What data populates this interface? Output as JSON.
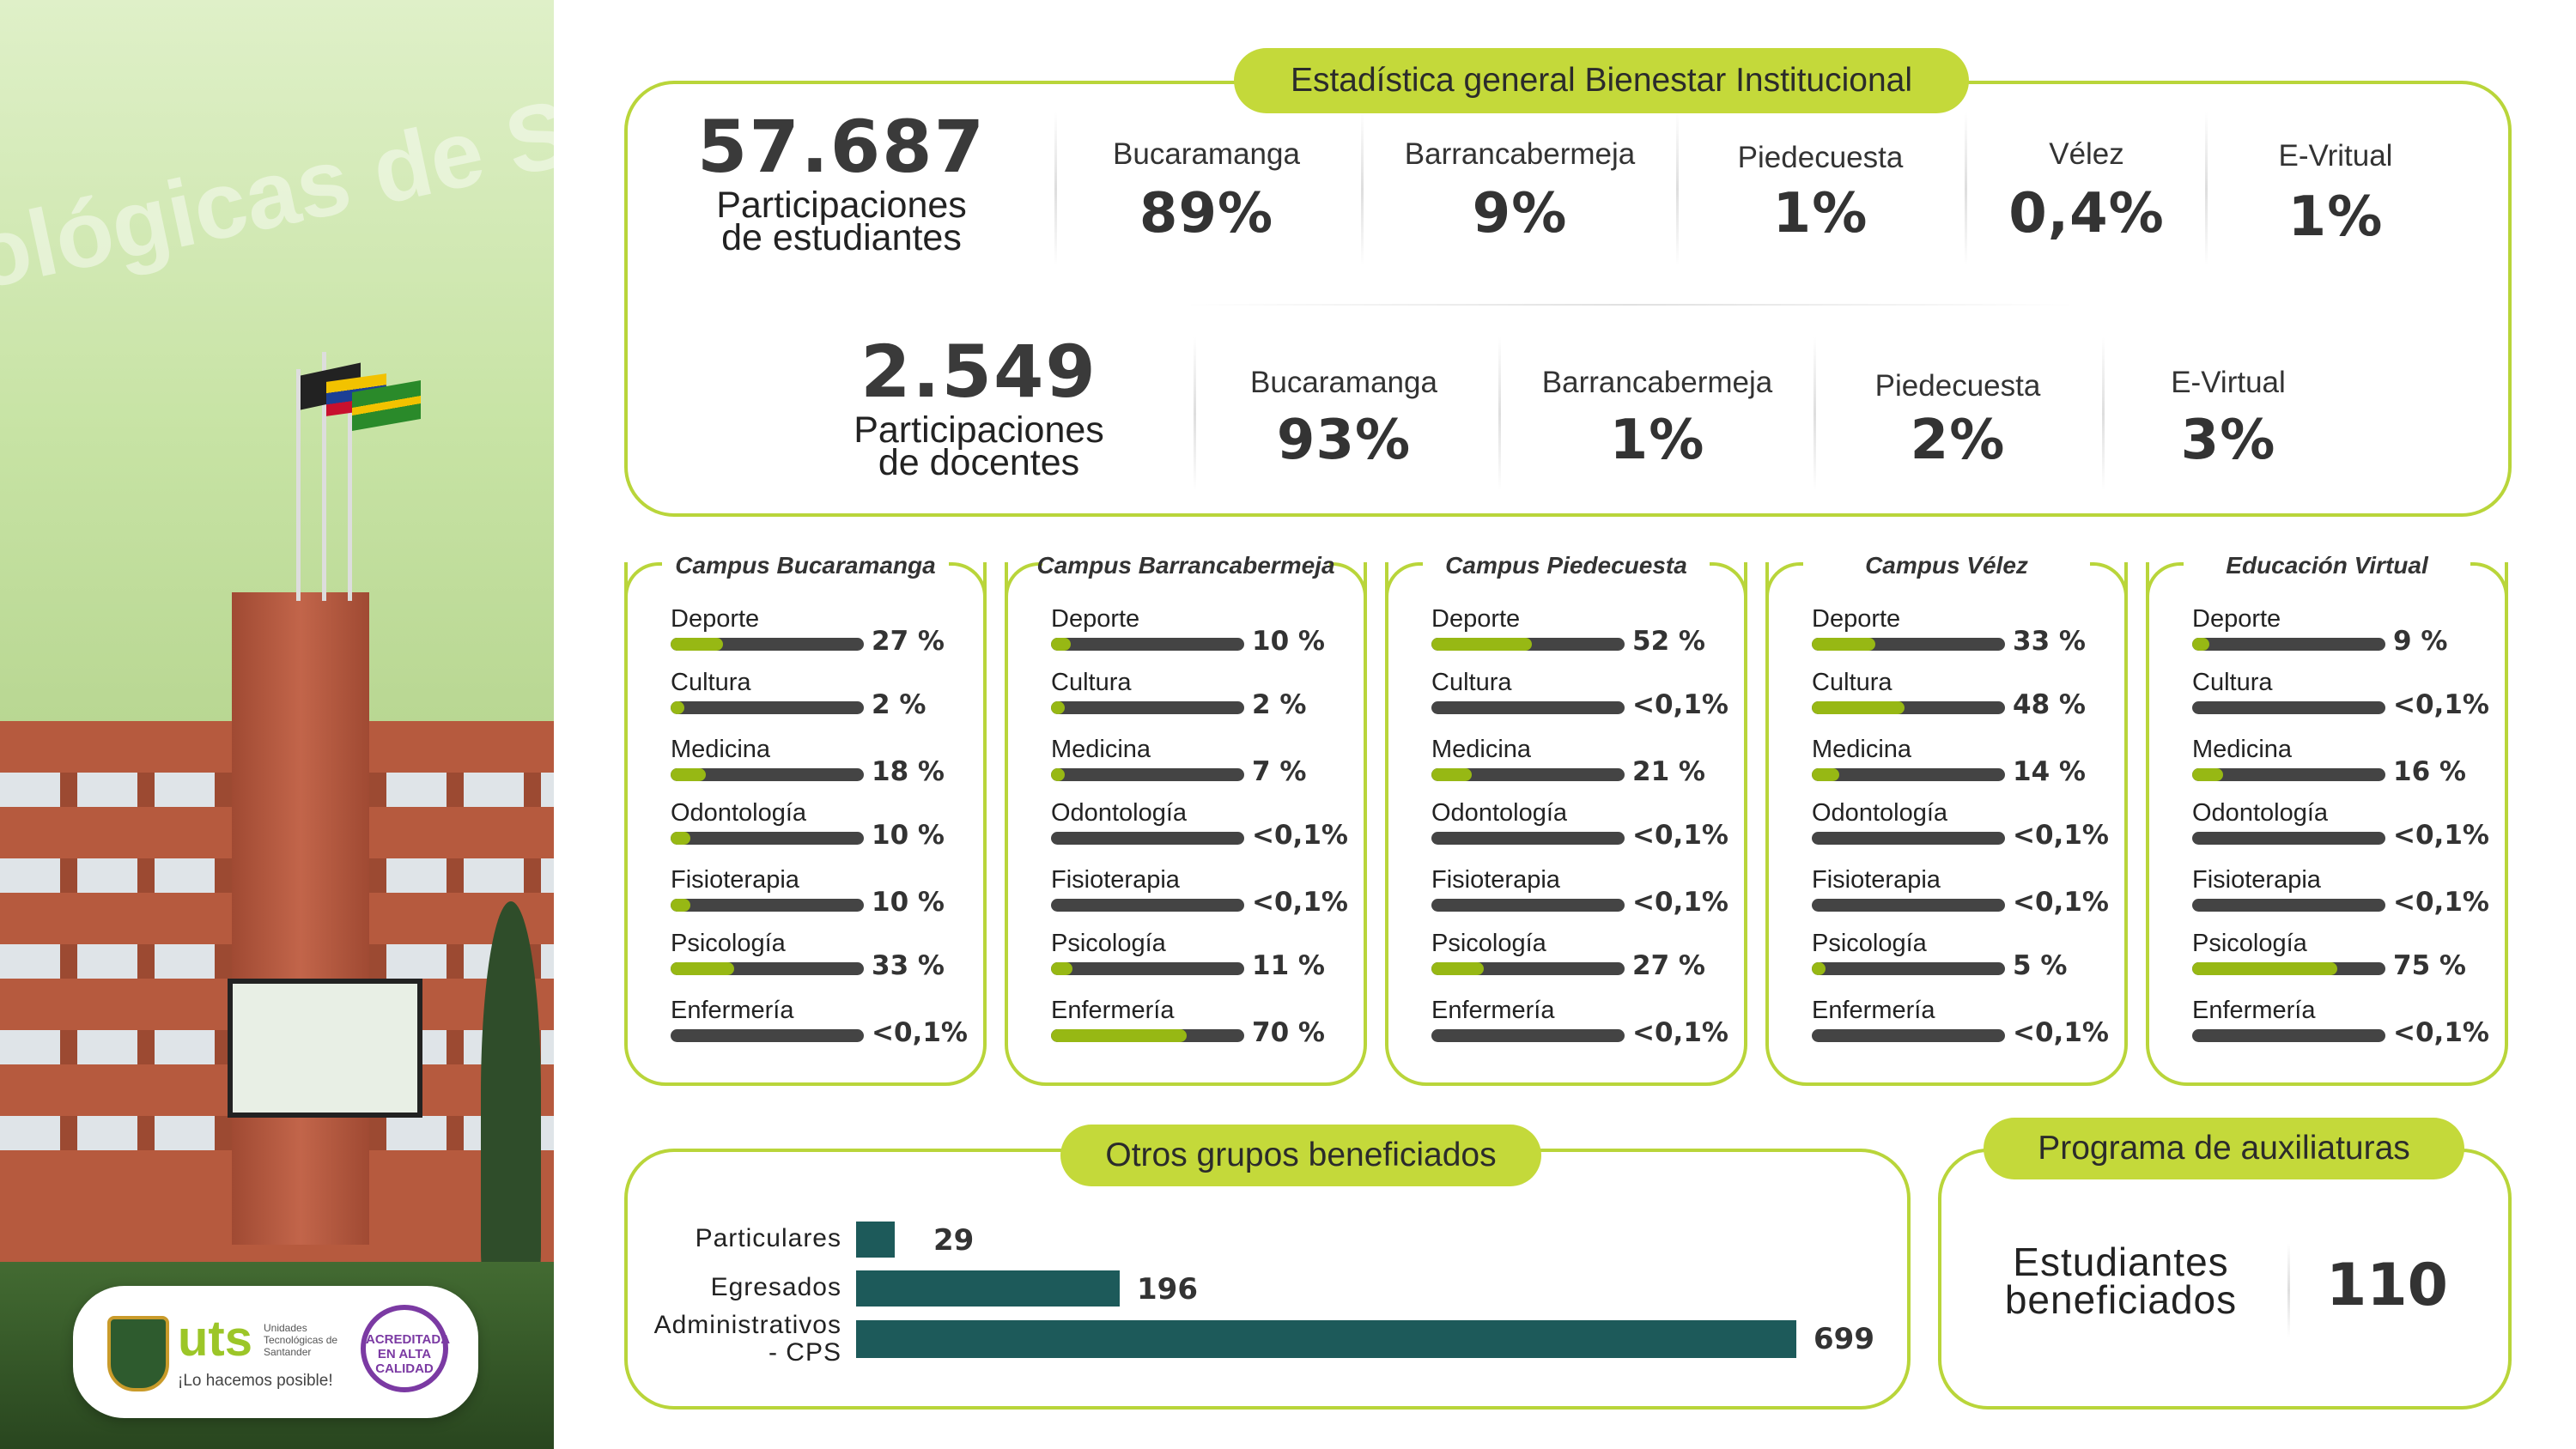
{
  "title": "Estadística general Bienestar Institucional",
  "students": {
    "total": "57.687",
    "label_line1": "Participaciones",
    "label_line2": "de estudiantes",
    "sites": [
      {
        "name": "Bucaramanga",
        "pct": "89%"
      },
      {
        "name": "Barrancabermeja",
        "pct": "9%"
      },
      {
        "name": "Piedecuesta",
        "pct": "1%"
      },
      {
        "name": "Vélez",
        "pct": "0,4%"
      },
      {
        "name": "E-Vritual",
        "pct": "1%"
      }
    ]
  },
  "teachers": {
    "total": "2.549",
    "label_line1": "Participaciones",
    "label_line2": "de docentes",
    "sites": [
      {
        "name": "Bucaramanga",
        "pct": "93%"
      },
      {
        "name": "Barrancabermeja",
        "pct": "1%"
      },
      {
        "name": "Piedecuesta",
        "pct": "2%"
      },
      {
        "name": "E-Virtual",
        "pct": "3%"
      }
    ]
  },
  "campuses": [
    {
      "title": "Campus Bucaramanga",
      "rows": [
        {
          "label": "Deporte",
          "value": 27,
          "text": "27 %"
        },
        {
          "label": "Cultura",
          "value": 2,
          "text": "2 %"
        },
        {
          "label": "Medicina",
          "value": 18,
          "text": "18 %"
        },
        {
          "label": "Odontología",
          "value": 10,
          "text": "10 %"
        },
        {
          "label": "Fisioterapia",
          "value": 10,
          "text": "10 %"
        },
        {
          "label": "Psicología",
          "value": 33,
          "text": "33 %"
        },
        {
          "label": "Enfermería",
          "value": 0.1,
          "text": "<0,1%"
        }
      ]
    },
    {
      "title": "Campus Barrancabermeja",
      "rows": [
        {
          "label": "Deporte",
          "value": 10,
          "text": "10 %"
        },
        {
          "label": "Cultura",
          "value": 2,
          "text": "2 %"
        },
        {
          "label": "Medicina",
          "value": 7,
          "text": "7 %"
        },
        {
          "label": "Odontología",
          "value": 0.1,
          "text": "<0,1%"
        },
        {
          "label": "Fisioterapia",
          "value": 0.1,
          "text": "<0,1%"
        },
        {
          "label": "Psicología",
          "value": 11,
          "text": "11 %"
        },
        {
          "label": "Enfermería",
          "value": 70,
          "text": "70 %"
        }
      ]
    },
    {
      "title": "Campus Piedecuesta",
      "rows": [
        {
          "label": "Deporte",
          "value": 52,
          "text": "52 %"
        },
        {
          "label": "Cultura",
          "value": 0.1,
          "text": "<0,1%"
        },
        {
          "label": "Medicina",
          "value": 21,
          "text": "21 %"
        },
        {
          "label": "Odontología",
          "value": 0.1,
          "text": "<0,1%"
        },
        {
          "label": "Fisioterapia",
          "value": 0.1,
          "text": "<0,1%"
        },
        {
          "label": "Psicología",
          "value": 27,
          "text": "27 %"
        },
        {
          "label": "Enfermería",
          "value": 0.1,
          "text": "<0,1%"
        }
      ]
    },
    {
      "title": "Campus Vélez",
      "rows": [
        {
          "label": "Deporte",
          "value": 33,
          "text": "33 %"
        },
        {
          "label": "Cultura",
          "value": 48,
          "text": "48 %"
        },
        {
          "label": "Medicina",
          "value": 14,
          "text": "14 %"
        },
        {
          "label": "Odontología",
          "value": 0.1,
          "text": "<0,1%"
        },
        {
          "label": "Fisioterapia",
          "value": 0.1,
          "text": "<0,1%"
        },
        {
          "label": "Psicología",
          "value": 5,
          "text": "5 %"
        },
        {
          "label": "Enfermería",
          "value": 0.1,
          "text": "<0,1%"
        }
      ]
    },
    {
      "title": "Educación Virtual",
      "rows": [
        {
          "label": "Deporte",
          "value": 9,
          "text": "9 %"
        },
        {
          "label": "Cultura",
          "value": 0.1,
          "text": "<0,1%"
        },
        {
          "label": "Medicina",
          "value": 16,
          "text": "16 %"
        },
        {
          "label": "Odontología",
          "value": 0.1,
          "text": "<0,1%"
        },
        {
          "label": "Fisioterapia",
          "value": 0.1,
          "text": "<0,1%"
        },
        {
          "label": "Psicología",
          "value": 75,
          "text": "75 %"
        },
        {
          "label": "Enfermería",
          "value": 0.1,
          "text": "<0,1%"
        }
      ]
    }
  ],
  "others": {
    "title": "Otros grupos beneficiados",
    "groups": [
      {
        "label_line1": "Particulares",
        "label_line2": "",
        "value": 29,
        "text": "29"
      },
      {
        "label_line1": "Egresados",
        "label_line2": "",
        "value": 196,
        "text": "196"
      },
      {
        "label_line1": "Administrativos",
        "label_line2": "- CPS",
        "value": 699,
        "text": "699"
      }
    ]
  },
  "auxiliaturas": {
    "title": "Programa de auxiliaturas",
    "label_line1": "Estudiantes",
    "label_line2": "beneficiados",
    "value": "110"
  },
  "branding": {
    "watermark": "ológicas de San",
    "brand": "uts",
    "brand_sub": "Unidades Tecnológicas de Santander",
    "slogan": "¡Lo hacemos posible!",
    "seal": "ACREDITADA EN ALTA CALIDAD"
  },
  "chart_data": [
    {
      "type": "bar",
      "title": "Campus Bucaramanga",
      "categories": [
        "Deporte",
        "Cultura",
        "Medicina",
        "Odontología",
        "Fisioterapia",
        "Psicología",
        "Enfermería"
      ],
      "values": [
        27,
        2,
        18,
        10,
        10,
        33,
        0.1
      ],
      "unit": "%"
    },
    {
      "type": "bar",
      "title": "Campus Barrancabermeja",
      "categories": [
        "Deporte",
        "Cultura",
        "Medicina",
        "Odontología",
        "Fisioterapia",
        "Psicología",
        "Enfermería"
      ],
      "values": [
        10,
        2,
        7,
        0.1,
        0.1,
        11,
        70
      ],
      "unit": "%"
    },
    {
      "type": "bar",
      "title": "Campus Piedecuesta",
      "categories": [
        "Deporte",
        "Cultura",
        "Medicina",
        "Odontología",
        "Fisioterapia",
        "Psicología",
        "Enfermería"
      ],
      "values": [
        52,
        0.1,
        21,
        0.1,
        0.1,
        27,
        0.1
      ],
      "unit": "%"
    },
    {
      "type": "bar",
      "title": "Campus Vélez",
      "categories": [
        "Deporte",
        "Cultura",
        "Medicina",
        "Odontología",
        "Fisioterapia",
        "Psicología",
        "Enfermería"
      ],
      "values": [
        33,
        48,
        14,
        0.1,
        0.1,
        5,
        0.1
      ],
      "unit": "%"
    },
    {
      "type": "bar",
      "title": "Educación Virtual",
      "categories": [
        "Deporte",
        "Cultura",
        "Medicina",
        "Odontología",
        "Fisioterapia",
        "Psicología",
        "Enfermería"
      ],
      "values": [
        9,
        0.1,
        16,
        0.1,
        0.1,
        75,
        0.1
      ],
      "unit": "%"
    },
    {
      "type": "bar",
      "title": "Otros grupos beneficiados",
      "categories": [
        "Particulares",
        "Egresados",
        "Administrativos - CPS"
      ],
      "values": [
        29,
        196,
        699
      ]
    }
  ],
  "colors": {
    "accent": "#b9d53a",
    "pill": "#c4d93a",
    "fill": "#97b814",
    "track": "#444444",
    "hbar": "#1d5a5a"
  }
}
